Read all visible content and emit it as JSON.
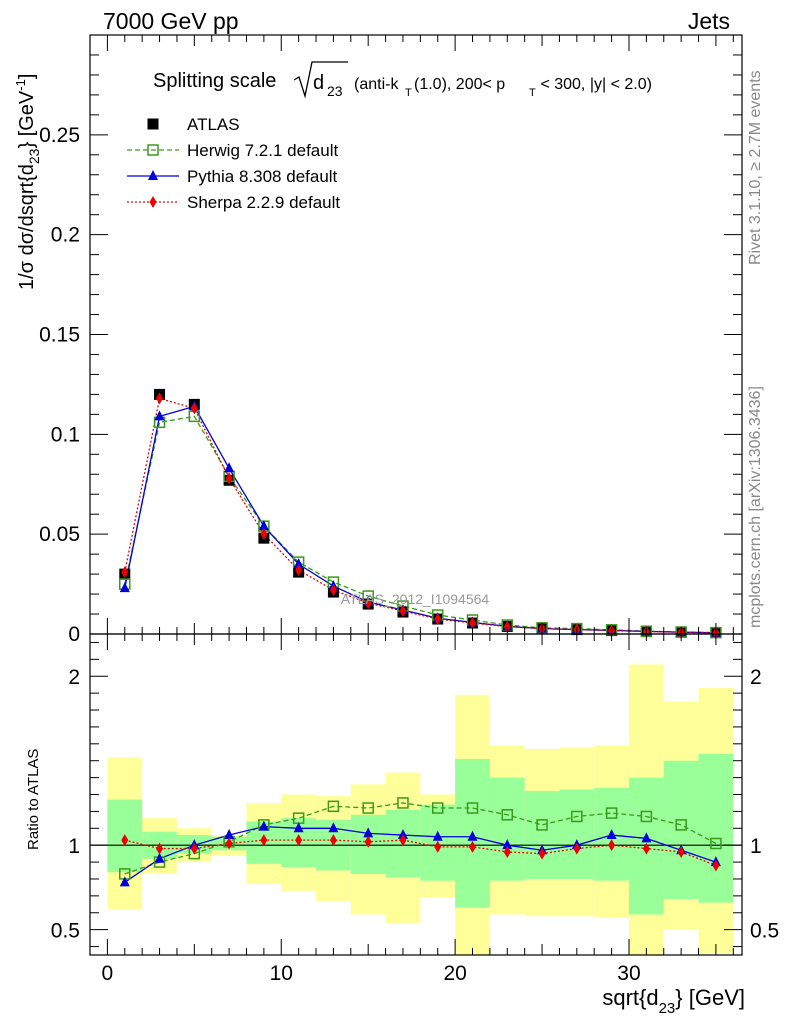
{
  "header": {
    "left": "7000 GeV pp",
    "right": "Jets"
  },
  "side_labels": {
    "rivet": "Rivet 3.1.10, ≥ 2.7M events",
    "mcplots": "mcplots.cern.ch [arXiv:1306.3436]"
  },
  "chart_data": [
    {
      "type": "line",
      "title": "Splitting scale √d23 (anti-kT(1.0), 200< pT < 300, |y| < 2.0)",
      "title_parts": {
        "prefix": "Splitting scale",
        "sqrt_arg": "d",
        "sqrt_sub": "23",
        "anti": "(anti-k",
        "anti_sub": "T",
        "mid": "(1.0), 200< p",
        "pt_sub": "T",
        "tail": " < 300, |y| < 2.0)"
      },
      "ylabel": {
        "a": "1/σ dσ/dsqrt{d",
        "sub": "23",
        "b": "} [GeV",
        "sup": "-1",
        "c": "]"
      },
      "watermark": "ATLAS_2012_I1094564",
      "xlim": [
        -1,
        36.5
      ],
      "ylim": [
        0,
        0.3
      ],
      "yticks": [
        0,
        0.05,
        0.1,
        0.15,
        0.2,
        0.25
      ],
      "ytick_labels": [
        "0",
        "0.05",
        "0.1",
        "0.15",
        "0.2",
        "0.25"
      ],
      "legend_position": "top-left",
      "x": [
        1,
        3,
        5,
        7,
        9,
        11,
        13,
        15,
        17,
        19,
        21,
        23,
        25,
        27,
        29,
        31,
        33,
        35
      ],
      "series": [
        {
          "name": "ATLAS",
          "color": "#000000",
          "marker": "square",
          "values": [
            0.03,
            0.12,
            0.115,
            0.077,
            0.048,
            0.031,
            0.021,
            0.015,
            0.011,
            0.0075,
            0.0055,
            0.0038,
            0.0028,
            0.0022,
            0.0017,
            0.0012,
            0.0009,
            0.0007
          ]
        },
        {
          "name": "Herwig 7.2.1 default",
          "color": "#3a9a1a",
          "marker": "open-square",
          "dash": "dashed",
          "values": [
            0.025,
            0.106,
            0.109,
            0.079,
            0.054,
            0.036,
            0.026,
            0.019,
            0.014,
            0.0095,
            0.007,
            0.0045,
            0.0031,
            0.0027,
            0.0021,
            0.0014,
            0.001,
            0.0007
          ]
        },
        {
          "name": "Pythia 8.308 default",
          "color": "#0000dd",
          "marker": "triangle",
          "values": [
            0.023,
            0.109,
            0.114,
            0.083,
            0.054,
            0.035,
            0.024,
            0.016,
            0.012,
            0.0079,
            0.0058,
            0.0038,
            0.0027,
            0.0022,
            0.0018,
            0.0013,
            0.0009,
            0.0006
          ]
        },
        {
          "name": "Sherpa 2.2.9 default",
          "color": "#ee0000",
          "marker": "diamond",
          "dash": "dotted",
          "values": [
            0.031,
            0.118,
            0.113,
            0.078,
            0.05,
            0.032,
            0.022,
            0.0155,
            0.0115,
            0.0075,
            0.0055,
            0.0037,
            0.0027,
            0.0022,
            0.0017,
            0.0012,
            0.0009,
            0.0006
          ]
        }
      ]
    },
    {
      "type": "line",
      "ylabel": "Ratio to ATLAS",
      "xlabel": "sqrt{d23} [GeV]",
      "xlabel_parts": {
        "a": "sqrt{d",
        "sub": "23",
        "b": "} [GeV]"
      },
      "xlim": [
        -1,
        36.5
      ],
      "ylim": [
        0.35,
        2.25
      ],
      "xticks": [
        0,
        10,
        20,
        30
      ],
      "xtick_labels": [
        "0",
        "10",
        "20",
        "30"
      ],
      "yticks": [
        0.5,
        1,
        2
      ],
      "ytick_labels": [
        "0.5",
        "1",
        "2"
      ],
      "bands": {
        "bin_edges": [
          0,
          2,
          4,
          6,
          8,
          10,
          12,
          14,
          16,
          18,
          20,
          22,
          24,
          26,
          28,
          30,
          32,
          34,
          36
        ],
        "stat_color": "#99ff99",
        "syst_color": "#ffff99",
        "inner_lo": [
          0.84,
          0.92,
          0.95,
          0.97,
          0.89,
          0.87,
          0.85,
          0.83,
          0.81,
          0.79,
          0.63,
          0.79,
          0.8,
          0.8,
          0.79,
          0.59,
          0.68,
          0.66
        ],
        "inner_hi": [
          1.27,
          1.08,
          1.06,
          1.05,
          1.14,
          1.16,
          1.15,
          1.18,
          1.21,
          1.24,
          1.51,
          1.4,
          1.32,
          1.33,
          1.34,
          1.4,
          1.5,
          1.54
        ],
        "outer_lo": [
          0.62,
          0.83,
          0.9,
          0.94,
          0.77,
          0.73,
          0.67,
          0.59,
          0.54,
          0.69,
          0.3,
          0.59,
          0.58,
          0.58,
          0.57,
          0.3,
          0.5,
          0.36
        ],
        "outer_hi": [
          1.52,
          1.16,
          1.1,
          1.06,
          1.25,
          1.3,
          1.29,
          1.36,
          1.43,
          1.3,
          1.89,
          1.59,
          1.57,
          1.58,
          1.59,
          2.07,
          1.85,
          1.93
        ]
      },
      "x": [
        1,
        3,
        5,
        7,
        9,
        11,
        13,
        15,
        17,
        19,
        21,
        23,
        25,
        27,
        29,
        31,
        33,
        35
      ],
      "series": [
        {
          "name": "Herwig 7.2.1 default",
          "color": "#3a9a1a",
          "marker": "open-square",
          "dash": "dashed",
          "values": [
            0.83,
            0.9,
            0.95,
            1.02,
            1.12,
            1.16,
            1.23,
            1.22,
            1.25,
            1.22,
            1.22,
            1.18,
            1.12,
            1.17,
            1.19,
            1.17,
            1.12,
            1.01
          ]
        },
        {
          "name": "Pythia 8.308 default",
          "color": "#0000dd",
          "marker": "triangle",
          "values": [
            0.78,
            0.92,
            1.0,
            1.06,
            1.11,
            1.1,
            1.1,
            1.07,
            1.06,
            1.05,
            1.05,
            1.0,
            0.97,
            1.0,
            1.06,
            1.04,
            0.97,
            0.9
          ]
        },
        {
          "name": "Sherpa 2.2.9 default",
          "color": "#ee0000",
          "marker": "diamond",
          "dash": "dotted",
          "values": [
            1.03,
            0.98,
            0.98,
            1.01,
            1.03,
            1.03,
            1.03,
            1.02,
            1.03,
            0.99,
            0.99,
            0.96,
            0.95,
            0.98,
            1.0,
            0.98,
            0.96,
            0.88
          ]
        }
      ]
    }
  ]
}
